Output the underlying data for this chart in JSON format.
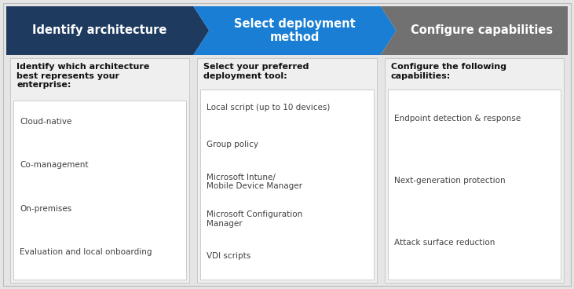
{
  "fig_width": 7.31,
  "fig_height": 3.68,
  "dpi": 100,
  "bg_color": "#ffffff",
  "outer_bg": "#e5e5e5",
  "header_colors": [
    "#1e3a5f",
    "#1a7fd4",
    "#717171"
  ],
  "header_texts": [
    "Identify architecture",
    "Select deployment\nmethod",
    "Configure capabilities"
  ],
  "header_text_color": "#ffffff",
  "header_font_size": 10.5,
  "section_bg": "#efefef",
  "inner_box_bg": "#ffffff",
  "section_titles": [
    "Identify which architecture\nbest represents your\nenterprise:",
    "Select your preferred\ndeployment tool:",
    "Configure the following\ncapabilities:"
  ],
  "section_title_fontsize": 8.0,
  "item_fontsize": 7.5,
  "item_color": "#404040",
  "section_title_color": "#111111",
  "col1_items": [
    "Cloud-native",
    "Co-management",
    "On-premises",
    "Evaluation and local onboarding"
  ],
  "col2_items": [
    "Local script (up to 10 devices)",
    "Group policy",
    "Microsoft Intune/\nMobile Device Manager",
    "Microsoft Configuration\nManager",
    "VDI scripts"
  ],
  "col3_items": [
    "Endpoint detection & response",
    "Next-generation protection",
    "Attack surface reduction"
  ],
  "divider_color": "#bbbbbb",
  "arrow_indent": 20
}
